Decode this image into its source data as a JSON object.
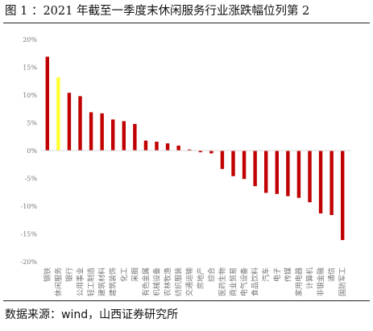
{
  "title": "图 1 ：2021 年截至一季度末休闲服务行业涨跌幅位列第 2",
  "source": "数据来源：wind，山西证券研究所",
  "chart_data": {
    "type": "bar",
    "ylim": [
      -20,
      20
    ],
    "yticks": [
      -20,
      -15,
      -10,
      -5,
      0,
      5,
      10,
      15,
      20
    ],
    "ytick_labels": [
      "-20%",
      "-15%",
      "-10%",
      "-5%",
      "0%",
      "5%",
      "10%",
      "15%",
      "20%"
    ],
    "grid": false,
    "legend": "none",
    "bar_color": "#c00000",
    "highlight_color": "#ffff33",
    "highlight_index": 1,
    "categories": [
      "钢铁",
      "休闲服务",
      "银行",
      "公用事业",
      "轻工制造",
      "建筑材料",
      "建筑装饰",
      "化工",
      "采掘",
      "有色金属",
      "机械设备",
      "农林牧渔",
      "纺织服装",
      "交通运输",
      "房地产",
      "综合",
      "医药生物",
      "商业贸易",
      "电气设备",
      "食品饮料",
      "汽车",
      "电子",
      "传媒",
      "家用电器",
      "计算机",
      "非银金融",
      "通信",
      "国防军工"
    ],
    "values": [
      16.9,
      13.2,
      10.4,
      9.8,
      6.9,
      6.7,
      5.6,
      5.3,
      4.8,
      1.8,
      1.6,
      1.3,
      0.9,
      0.2,
      -0.3,
      -0.5,
      -3.3,
      -4.6,
      -5.1,
      -6.4,
      -7.6,
      -7.8,
      -8.2,
      -8.5,
      -9.3,
      -11.3,
      -11.6,
      -16.1
    ]
  }
}
